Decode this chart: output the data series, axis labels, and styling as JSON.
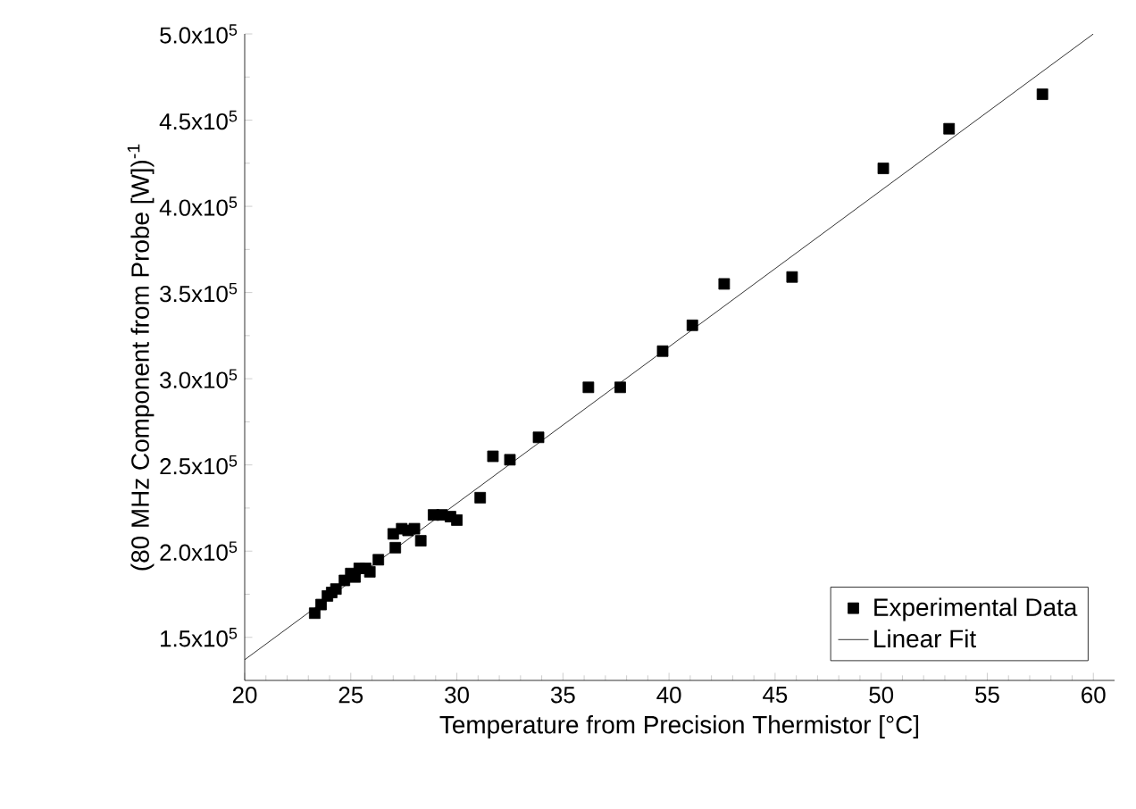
{
  "chart_data": {
    "type": "scatter",
    "xlabel": "Temperature from Precision Thermistor [°C]",
    "ylabel": "(80 MHz Component from Probe [W])$^{-1}$",
    "xlim": [
      20,
      61
    ],
    "ylim": [
      125000,
      500000
    ],
    "xticks": [
      20,
      25,
      30,
      35,
      40,
      45,
      50,
      55,
      60
    ],
    "yticks": [
      {
        "value": 150000,
        "label": "1.5x10$^{5}$"
      },
      {
        "value": 200000,
        "label": "2.0x10$^{5}$"
      },
      {
        "value": 250000,
        "label": "2.5x10$^{5}$"
      },
      {
        "value": 300000,
        "label": "3.0x10$^{5}$"
      },
      {
        "value": 350000,
        "label": "3.5x10$^{5}$"
      },
      {
        "value": 400000,
        "label": "4.0x10$^{5}$"
      },
      {
        "value": 450000,
        "label": "4.5x10$^{5}$"
      },
      {
        "value": 500000,
        "label": "5.0x10$^{5}$"
      }
    ],
    "legend": "bottom right",
    "grid": false,
    "series": [
      {
        "name": "Experimental Data",
        "marker": "square",
        "color": "#000000",
        "x": [
          23.3,
          23.6,
          23.9,
          24.1,
          24.3,
          24.7,
          25.0,
          25.2,
          25.4,
          25.7,
          25.9,
          26.3,
          27.0,
          27.1,
          27.4,
          27.7,
          28.0,
          28.3,
          28.9,
          29.3,
          29.7,
          30.0,
          31.1,
          31.7,
          32.5,
          33.85,
          36.2,
          37.7,
          39.7,
          41.1,
          42.6,
          45.8,
          50.1,
          53.2,
          57.6
        ],
        "values": [
          164000,
          169000,
          174000,
          176000,
          178000,
          183000,
          187000,
          185000,
          190000,
          190000,
          188000,
          195000,
          210000,
          202000,
          213000,
          212000,
          213000,
          206000,
          221000,
          221000,
          220000,
          218000,
          231000,
          255000,
          253000,
          266000,
          295000,
          295000,
          316000,
          331000,
          355000,
          359000,
          422000,
          445000,
          465000
        ]
      },
      {
        "name": "Linear Fit",
        "type": "line",
        "marker": "none",
        "line_style": "solid",
        "color": "#000000",
        "x": [
          20,
          60.0
        ],
        "values": [
          137000,
          500000
        ]
      }
    ]
  }
}
